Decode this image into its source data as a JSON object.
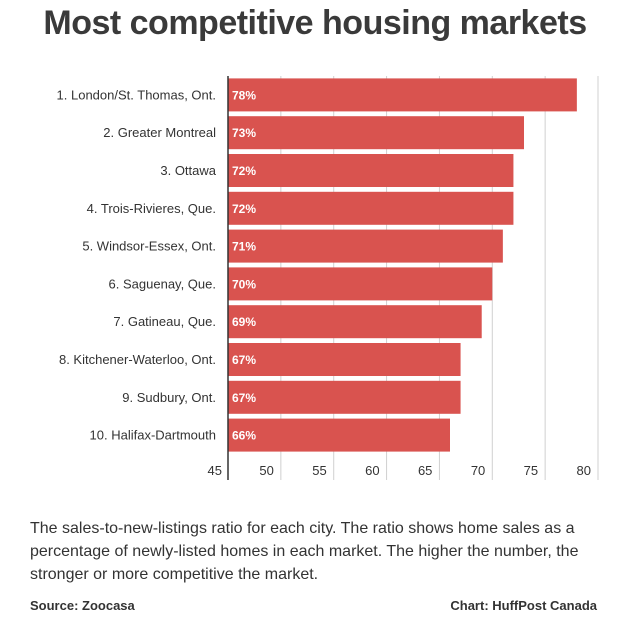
{
  "chart_data": {
    "type": "bar",
    "orientation": "horizontal",
    "title": "Most competitive housing markets",
    "categories": [
      "1. London/St. Thomas, Ont.",
      "2. Greater Montreal",
      "3. Ottawa",
      "4. Trois-Rivieres, Que.",
      "5. Windsor-Essex, Ont.",
      "6. Saguenay, Que.",
      "7. Gatineau, Que.",
      "8. Kitchener-Waterloo, Ont.",
      "9. Sudbury, Ont.",
      "10. Halifax-Dartmouth"
    ],
    "values": [
      78,
      73,
      72,
      72,
      71,
      70,
      69,
      67,
      67,
      66
    ],
    "value_labels": [
      "78%",
      "73%",
      "72%",
      "72%",
      "71%",
      "70%",
      "69%",
      "67%",
      "67%",
      "66%"
    ],
    "xlim": [
      45,
      80
    ],
    "xticks": [
      45,
      50,
      55,
      60,
      65,
      70,
      75,
      80
    ],
    "grid": true,
    "bar_color": "#d9534f"
  },
  "description": "The sales-to-new-listings ratio for each city. The ratio shows home sales as a percentage of newly-listed homes in each market. The higher the number, the stronger or more competitive the market.",
  "source": "Source: Zoocasa",
  "credit": "Chart: HuffPost Canada"
}
